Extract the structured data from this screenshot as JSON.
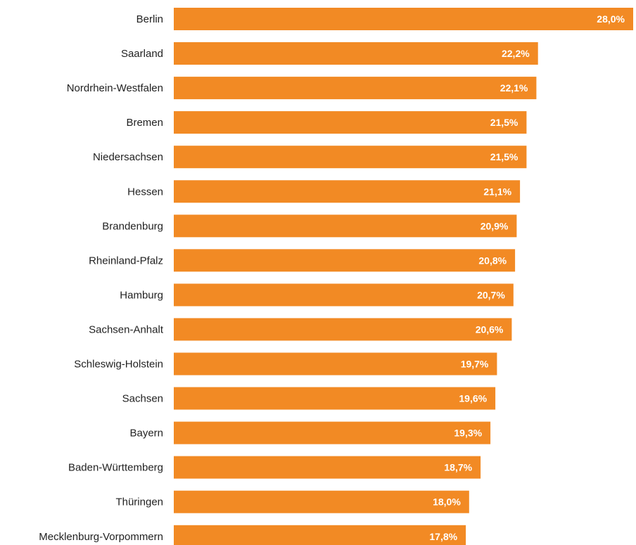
{
  "colors": {
    "bar": "#f28a24",
    "value_text": "#ffffff",
    "category_text": "#222222",
    "background": "#ffffff"
  },
  "chart_data": {
    "type": "bar",
    "orientation": "horizontal",
    "title": "",
    "xlabel": "",
    "ylabel": "",
    "grid": false,
    "legend": "none",
    "xlim": [
      0,
      28
    ],
    "categories": [
      "Berlin",
      "Saarland",
      "Nordrhein-Westfalen",
      "Bremen",
      "Niedersachsen",
      "Hessen",
      "Brandenburg",
      "Rheinland-Pfalz",
      "Hamburg",
      "Sachsen-Anhalt",
      "Schleswig-Holstein",
      "Sachsen",
      "Bayern",
      "Baden-Württemberg",
      "Thüringen",
      "Mecklenburg-Vorpommern"
    ],
    "values": [
      28.0,
      22.2,
      22.1,
      21.5,
      21.5,
      21.1,
      20.9,
      20.8,
      20.7,
      20.6,
      19.7,
      19.6,
      19.3,
      18.7,
      18.0,
      17.8
    ],
    "value_labels": [
      "28,0%",
      "22,2%",
      "22,1%",
      "21,5%",
      "21,5%",
      "21,1%",
      "20,9%",
      "20,8%",
      "20,7%",
      "20,6%",
      "19,7%",
      "19,6%",
      "19,3%",
      "18,7%",
      "18,0%",
      "17,8%"
    ]
  }
}
